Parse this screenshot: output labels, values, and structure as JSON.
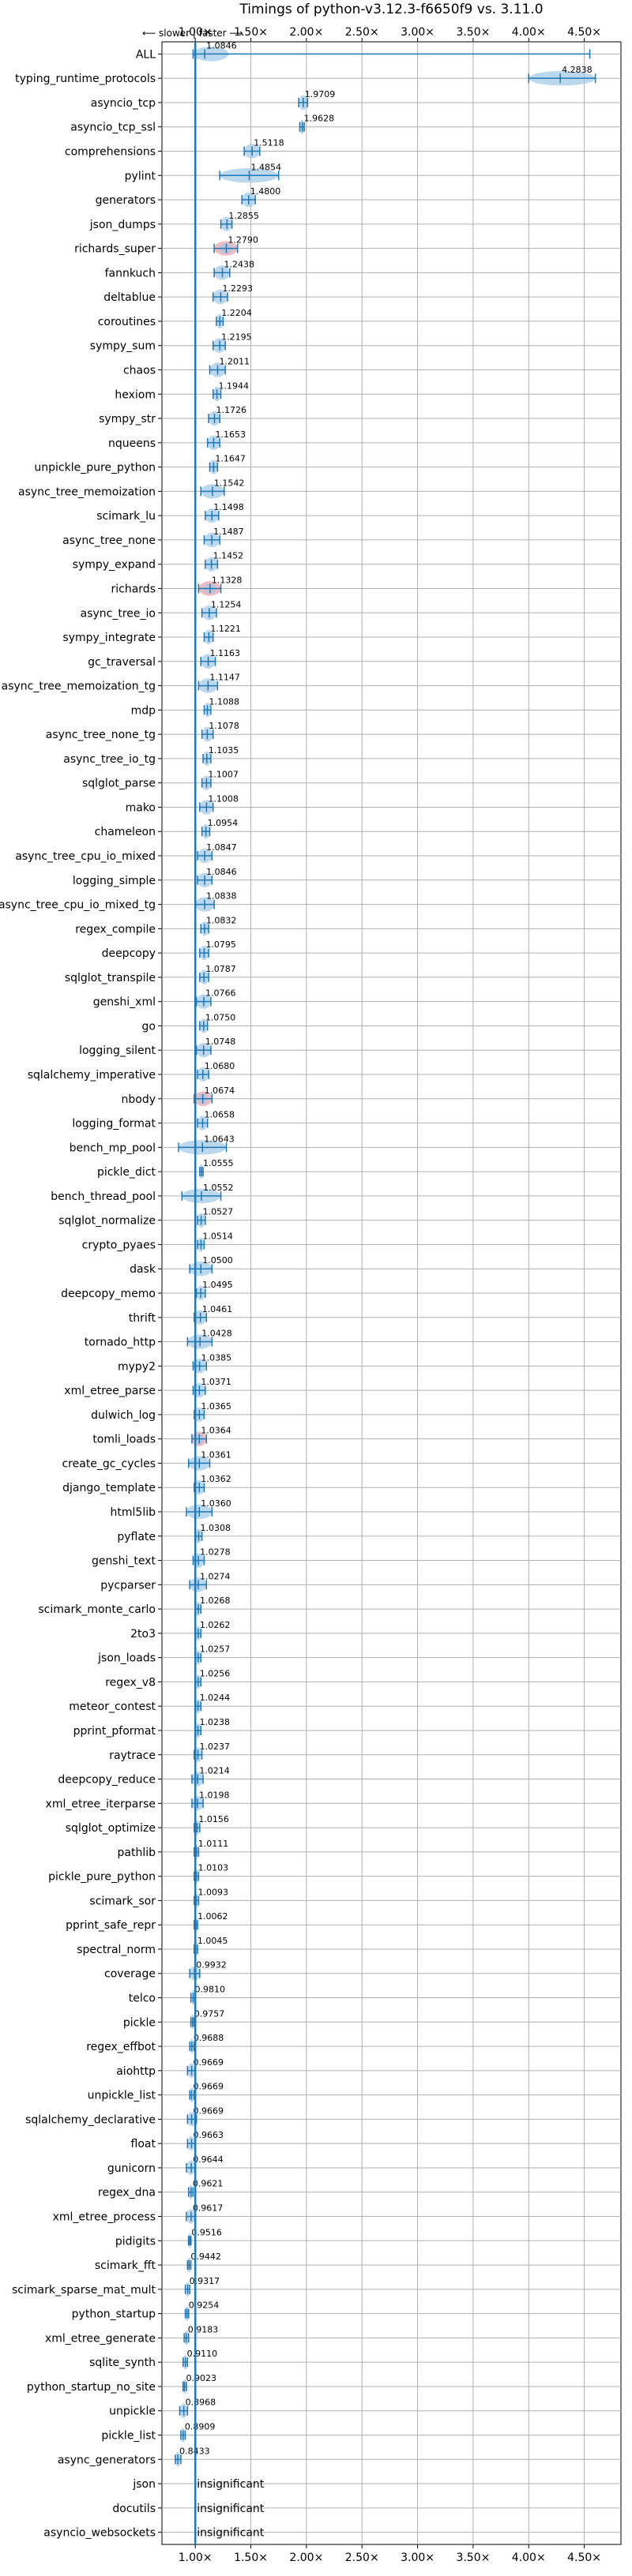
{
  "chart_data": {
    "type": "violin",
    "title": "Timings of python-v3.12.3-f6650f9 vs. 3.11.0",
    "direction_label": "⟵ slower | faster ⟶",
    "x_ticks": [
      {
        "value": 1.0,
        "label": "1.00×"
      },
      {
        "value": 1.5,
        "label": "1.50×"
      },
      {
        "value": 2.0,
        "label": "2.00×"
      },
      {
        "value": 2.5,
        "label": "2.50×"
      },
      {
        "value": 3.0,
        "label": "3.00×"
      },
      {
        "value": 3.5,
        "label": "3.50×"
      },
      {
        "value": 4.0,
        "label": "4.00×"
      },
      {
        "value": 4.5,
        "label": "4.50×"
      }
    ],
    "xlim": [
      0.7,
      4.83
    ],
    "grid": true,
    "reference_line": 1.0,
    "insignificant_label": "insignificant",
    "colors": {
      "improved": "#1f77b4",
      "regressed": "#d62728",
      "grid": "#b0b0b0"
    },
    "benchmarks": [
      {
        "name": "ALL",
        "value": 1.0846,
        "label": "1.0846",
        "low": 0.98,
        "high": 1.3,
        "whisker_high": 4.55,
        "width": 0.2
      },
      {
        "name": "typing_runtime_protocols",
        "value": 4.2838,
        "label": "4.2838",
        "low": 4.0,
        "high": 4.6
      },
      {
        "name": "asyncio_tcp",
        "value": 1.9709,
        "label": "1.9709",
        "low": 1.93,
        "high": 2.01
      },
      {
        "name": "asyncio_tcp_ssl",
        "value": 1.9628,
        "label": "1.9628",
        "low": 1.94,
        "high": 1.98
      },
      {
        "name": "comprehensions",
        "value": 1.5118,
        "label": "1.5118",
        "low": 1.44,
        "high": 1.58
      },
      {
        "name": "pylint",
        "value": 1.4854,
        "label": "1.4854",
        "low": 1.22,
        "high": 1.75
      },
      {
        "name": "generators",
        "value": 1.48,
        "label": "1.4800",
        "low": 1.42,
        "high": 1.54
      },
      {
        "name": "json_dumps",
        "value": 1.2855,
        "label": "1.2855",
        "low": 1.23,
        "high": 1.33
      },
      {
        "name": "richards_super",
        "value": 1.279,
        "label": "1.2790",
        "low": 1.17,
        "high": 1.38,
        "regressed": true
      },
      {
        "name": "fannkuch",
        "value": 1.2438,
        "label": "1.2438",
        "low": 1.17,
        "high": 1.31
      },
      {
        "name": "deltablue",
        "value": 1.2293,
        "label": "1.2293",
        "low": 1.16,
        "high": 1.29
      },
      {
        "name": "coroutines",
        "value": 1.2204,
        "label": "1.2204",
        "low": 1.19,
        "high": 1.25
      },
      {
        "name": "sympy_sum",
        "value": 1.2195,
        "label": "1.2195",
        "low": 1.16,
        "high": 1.27
      },
      {
        "name": "chaos",
        "value": 1.2011,
        "label": "1.2011",
        "low": 1.13,
        "high": 1.27
      },
      {
        "name": "hexiom",
        "value": 1.1944,
        "label": "1.1944",
        "low": 1.16,
        "high": 1.23
      },
      {
        "name": "sympy_str",
        "value": 1.1726,
        "label": "1.1726",
        "low": 1.12,
        "high": 1.22
      },
      {
        "name": "nqueens",
        "value": 1.1653,
        "label": "1.1653",
        "low": 1.11,
        "high": 1.22
      },
      {
        "name": "unpickle_pure_python",
        "value": 1.1647,
        "label": "1.1647",
        "low": 1.13,
        "high": 1.2
      },
      {
        "name": "async_tree_memoization",
        "value": 1.1542,
        "label": "1.1542",
        "low": 1.05,
        "high": 1.26
      },
      {
        "name": "scimark_lu",
        "value": 1.1498,
        "label": "1.1498",
        "low": 1.09,
        "high": 1.21
      },
      {
        "name": "async_tree_none",
        "value": 1.1487,
        "label": "1.1487",
        "low": 1.08,
        "high": 1.22
      },
      {
        "name": "sympy_expand",
        "value": 1.1452,
        "label": "1.1452",
        "low": 1.09,
        "high": 1.2
      },
      {
        "name": "richards",
        "value": 1.1328,
        "label": "1.1328",
        "low": 1.03,
        "high": 1.23,
        "regressed": true
      },
      {
        "name": "async_tree_io",
        "value": 1.1254,
        "label": "1.1254",
        "low": 1.06,
        "high": 1.19
      },
      {
        "name": "sympy_integrate",
        "value": 1.1221,
        "label": "1.1221",
        "low": 1.08,
        "high": 1.16
      },
      {
        "name": "gc_traversal",
        "value": 1.1163,
        "label": "1.1163",
        "low": 1.05,
        "high": 1.18
      },
      {
        "name": "async_tree_memoization_tg",
        "value": 1.1147,
        "label": "1.1147",
        "low": 1.03,
        "high": 1.2
      },
      {
        "name": "mdp",
        "value": 1.1088,
        "label": "1.1088",
        "low": 1.08,
        "high": 1.14
      },
      {
        "name": "async_tree_none_tg",
        "value": 1.1078,
        "label": "1.1078",
        "low": 1.06,
        "high": 1.16
      },
      {
        "name": "async_tree_io_tg",
        "value": 1.1035,
        "label": "1.1035",
        "low": 1.07,
        "high": 1.14
      },
      {
        "name": "sqlglot_parse",
        "value": 1.1007,
        "label": "1.1007",
        "low": 1.06,
        "high": 1.14
      },
      {
        "name": "mako",
        "value": 1.1008,
        "label": "1.1008",
        "low": 1.04,
        "high": 1.16
      },
      {
        "name": "chameleon",
        "value": 1.0954,
        "label": "1.0954",
        "low": 1.06,
        "high": 1.13
      },
      {
        "name": "async_tree_cpu_io_mixed",
        "value": 1.0847,
        "label": "1.0847",
        "low": 1.02,
        "high": 1.15
      },
      {
        "name": "logging_simple",
        "value": 1.0846,
        "label": "1.0846",
        "low": 1.02,
        "high": 1.15
      },
      {
        "name": "async_tree_cpu_io_mixed_tg",
        "value": 1.0838,
        "label": "1.0838",
        "low": 1.0,
        "high": 1.17
      },
      {
        "name": "regex_compile",
        "value": 1.0832,
        "label": "1.0832",
        "low": 1.05,
        "high": 1.12
      },
      {
        "name": "deepcopy",
        "value": 1.0795,
        "label": "1.0795",
        "low": 1.04,
        "high": 1.12
      },
      {
        "name": "sqlglot_transpile",
        "value": 1.0787,
        "label": "1.0787",
        "low": 1.04,
        "high": 1.12
      },
      {
        "name": "genshi_xml",
        "value": 1.0766,
        "label": "1.0766",
        "low": 1.01,
        "high": 1.14
      },
      {
        "name": "go",
        "value": 1.075,
        "label": "1.0750",
        "low": 1.04,
        "high": 1.11
      },
      {
        "name": "logging_silent",
        "value": 1.0748,
        "label": "1.0748",
        "low": 1.01,
        "high": 1.14
      },
      {
        "name": "sqlalchemy_imperative",
        "value": 1.068,
        "label": "1.0680",
        "low": 1.02,
        "high": 1.12
      },
      {
        "name": "nbody",
        "value": 1.0674,
        "label": "1.0674",
        "low": 0.99,
        "high": 1.15,
        "regressed": true
      },
      {
        "name": "logging_format",
        "value": 1.0658,
        "label": "1.0658",
        "low": 1.02,
        "high": 1.11
      },
      {
        "name": "bench_mp_pool",
        "value": 1.0643,
        "label": "1.0643",
        "low": 0.85,
        "high": 1.28
      },
      {
        "name": "pickle_dict",
        "value": 1.0555,
        "label": "1.0555",
        "low": 1.04,
        "high": 1.07
      },
      {
        "name": "bench_thread_pool",
        "value": 1.0552,
        "label": "1.0552",
        "low": 0.88,
        "high": 1.23
      },
      {
        "name": "sqlglot_normalize",
        "value": 1.0527,
        "label": "1.0527",
        "low": 1.02,
        "high": 1.09
      },
      {
        "name": "crypto_pyaes",
        "value": 1.0514,
        "label": "1.0514",
        "low": 1.02,
        "high": 1.08
      },
      {
        "name": "dask",
        "value": 1.05,
        "label": "1.0500",
        "low": 0.95,
        "high": 1.15
      },
      {
        "name": "deepcopy_memo",
        "value": 1.0495,
        "label": "1.0495",
        "low": 1.01,
        "high": 1.09
      },
      {
        "name": "thrift",
        "value": 1.0461,
        "label": "1.0461",
        "low": 0.99,
        "high": 1.1
      },
      {
        "name": "tornado_http",
        "value": 1.0428,
        "label": "1.0428",
        "low": 0.93,
        "high": 1.15
      },
      {
        "name": "mypy2",
        "value": 1.0385,
        "label": "1.0385",
        "low": 0.98,
        "high": 1.1
      },
      {
        "name": "xml_etree_parse",
        "value": 1.0371,
        "label": "1.0371",
        "low": 0.98,
        "high": 1.09
      },
      {
        "name": "dulwich_log",
        "value": 1.0365,
        "label": "1.0365",
        "low": 0.99,
        "high": 1.08
      },
      {
        "name": "tomli_loads",
        "value": 1.0364,
        "label": "1.0364",
        "low": 0.97,
        "high": 1.1,
        "regressed": true
      },
      {
        "name": "create_gc_cycles",
        "value": 1.0361,
        "label": "1.0361",
        "low": 0.94,
        "high": 1.13
      },
      {
        "name": "django_template",
        "value": 1.0362,
        "label": "1.0362",
        "low": 0.99,
        "high": 1.08
      },
      {
        "name": "html5lib",
        "value": 1.036,
        "label": "1.0360",
        "low": 0.92,
        "high": 1.15
      },
      {
        "name": "pyflate",
        "value": 1.0308,
        "label": "1.0308",
        "low": 1.0,
        "high": 1.06
      },
      {
        "name": "genshi_text",
        "value": 1.0278,
        "label": "1.0278",
        "low": 0.98,
        "high": 1.08
      },
      {
        "name": "pycparser",
        "value": 1.0274,
        "label": "1.0274",
        "low": 0.95,
        "high": 1.1
      },
      {
        "name": "scimark_monte_carlo",
        "value": 1.0268,
        "label": "1.0268",
        "low": 1.0,
        "high": 1.05
      },
      {
        "name": "2to3",
        "value": 1.0262,
        "label": "1.0262",
        "low": 1.0,
        "high": 1.05
      },
      {
        "name": "json_loads",
        "value": 1.0257,
        "label": "1.0257",
        "low": 1.0,
        "high": 1.05
      },
      {
        "name": "regex_v8",
        "value": 1.0256,
        "label": "1.0256",
        "low": 1.0,
        "high": 1.05
      },
      {
        "name": "meteor_contest",
        "value": 1.0244,
        "label": "1.0244",
        "low": 1.0,
        "high": 1.05
      },
      {
        "name": "pprint_pformat",
        "value": 1.0238,
        "label": "1.0238",
        "low": 1.0,
        "high": 1.05
      },
      {
        "name": "raytrace",
        "value": 1.0237,
        "label": "1.0237",
        "low": 0.99,
        "high": 1.06
      },
      {
        "name": "deepcopy_reduce",
        "value": 1.0214,
        "label": "1.0214",
        "low": 0.97,
        "high": 1.07
      },
      {
        "name": "xml_etree_iterparse",
        "value": 1.0198,
        "label": "1.0198",
        "low": 0.97,
        "high": 1.07
      },
      {
        "name": "sqlglot_optimize",
        "value": 1.0156,
        "label": "1.0156",
        "low": 0.99,
        "high": 1.04
      },
      {
        "name": "pathlib",
        "value": 1.0111,
        "label": "1.0111",
        "low": 0.99,
        "high": 1.03
      },
      {
        "name": "pickle_pure_python",
        "value": 1.0103,
        "label": "1.0103",
        "low": 0.99,
        "high": 1.03
      },
      {
        "name": "scimark_sor",
        "value": 1.0093,
        "label": "1.0093",
        "low": 0.99,
        "high": 1.03
      },
      {
        "name": "pprint_safe_repr",
        "value": 1.0062,
        "label": "1.0062",
        "low": 0.99,
        "high": 1.02
      },
      {
        "name": "spectral_norm",
        "value": 1.0045,
        "label": "1.0045",
        "low": 0.99,
        "high": 1.02
      },
      {
        "name": "coverage",
        "value": 0.9932,
        "label": "0.9932",
        "low": 0.95,
        "high": 1.04
      },
      {
        "name": "telco",
        "value": 0.981,
        "label": "0.9810",
        "low": 0.96,
        "high": 1.0
      },
      {
        "name": "pickle",
        "value": 0.9757,
        "label": "0.9757",
        "low": 0.96,
        "high": 0.99
      },
      {
        "name": "regex_effbot",
        "value": 0.9688,
        "label": "0.9688",
        "low": 0.95,
        "high": 0.99
      },
      {
        "name": "aiohttp",
        "value": 0.9669,
        "label": "0.9669",
        "low": 0.93,
        "high": 1.0
      },
      {
        "name": "unpickle_list",
        "value": 0.9669,
        "label": "0.9669",
        "low": 0.95,
        "high": 0.99
      },
      {
        "name": "sqlalchemy_declarative",
        "value": 0.9669,
        "label": "0.9669",
        "low": 0.93,
        "high": 1.01
      },
      {
        "name": "float",
        "value": 0.9663,
        "label": "0.9663",
        "low": 0.93,
        "high": 1.0
      },
      {
        "name": "gunicorn",
        "value": 0.9644,
        "label": "0.9644",
        "low": 0.92,
        "high": 1.0
      },
      {
        "name": "regex_dna",
        "value": 0.9621,
        "label": "0.9621",
        "low": 0.94,
        "high": 0.98
      },
      {
        "name": "xml_etree_process",
        "value": 0.9617,
        "label": "0.9617",
        "low": 0.92,
        "high": 1.0
      },
      {
        "name": "pidigits",
        "value": 0.9516,
        "label": "0.9516",
        "low": 0.94,
        "high": 0.96
      },
      {
        "name": "scimark_fft",
        "value": 0.9442,
        "label": "0.9442",
        "low": 0.93,
        "high": 0.96
      },
      {
        "name": "scimark_sparse_mat_mult",
        "value": 0.9317,
        "label": "0.9317",
        "low": 0.91,
        "high": 0.95
      },
      {
        "name": "python_startup",
        "value": 0.9254,
        "label": "0.9254",
        "low": 0.91,
        "high": 0.94
      },
      {
        "name": "xml_etree_generate",
        "value": 0.9183,
        "label": "0.9183",
        "low": 0.9,
        "high": 0.94
      },
      {
        "name": "sqlite_synth",
        "value": 0.911,
        "label": "0.9110",
        "low": 0.89,
        "high": 0.93
      },
      {
        "name": "python_startup_no_site",
        "value": 0.9023,
        "label": "0.9023",
        "low": 0.89,
        "high": 0.92
      },
      {
        "name": "unpickle",
        "value": 0.8968,
        "label": "0.8968",
        "low": 0.86,
        "high": 0.93
      },
      {
        "name": "pickle_list",
        "value": 0.8909,
        "label": "0.8909",
        "low": 0.87,
        "high": 0.91
      },
      {
        "name": "async_generators",
        "value": 0.8433,
        "label": "0.8433",
        "low": 0.82,
        "high": 0.87
      },
      {
        "name": "json",
        "insignificant": true
      },
      {
        "name": "docutils",
        "insignificant": true
      },
      {
        "name": "asyncio_websockets",
        "insignificant": true
      }
    ]
  }
}
